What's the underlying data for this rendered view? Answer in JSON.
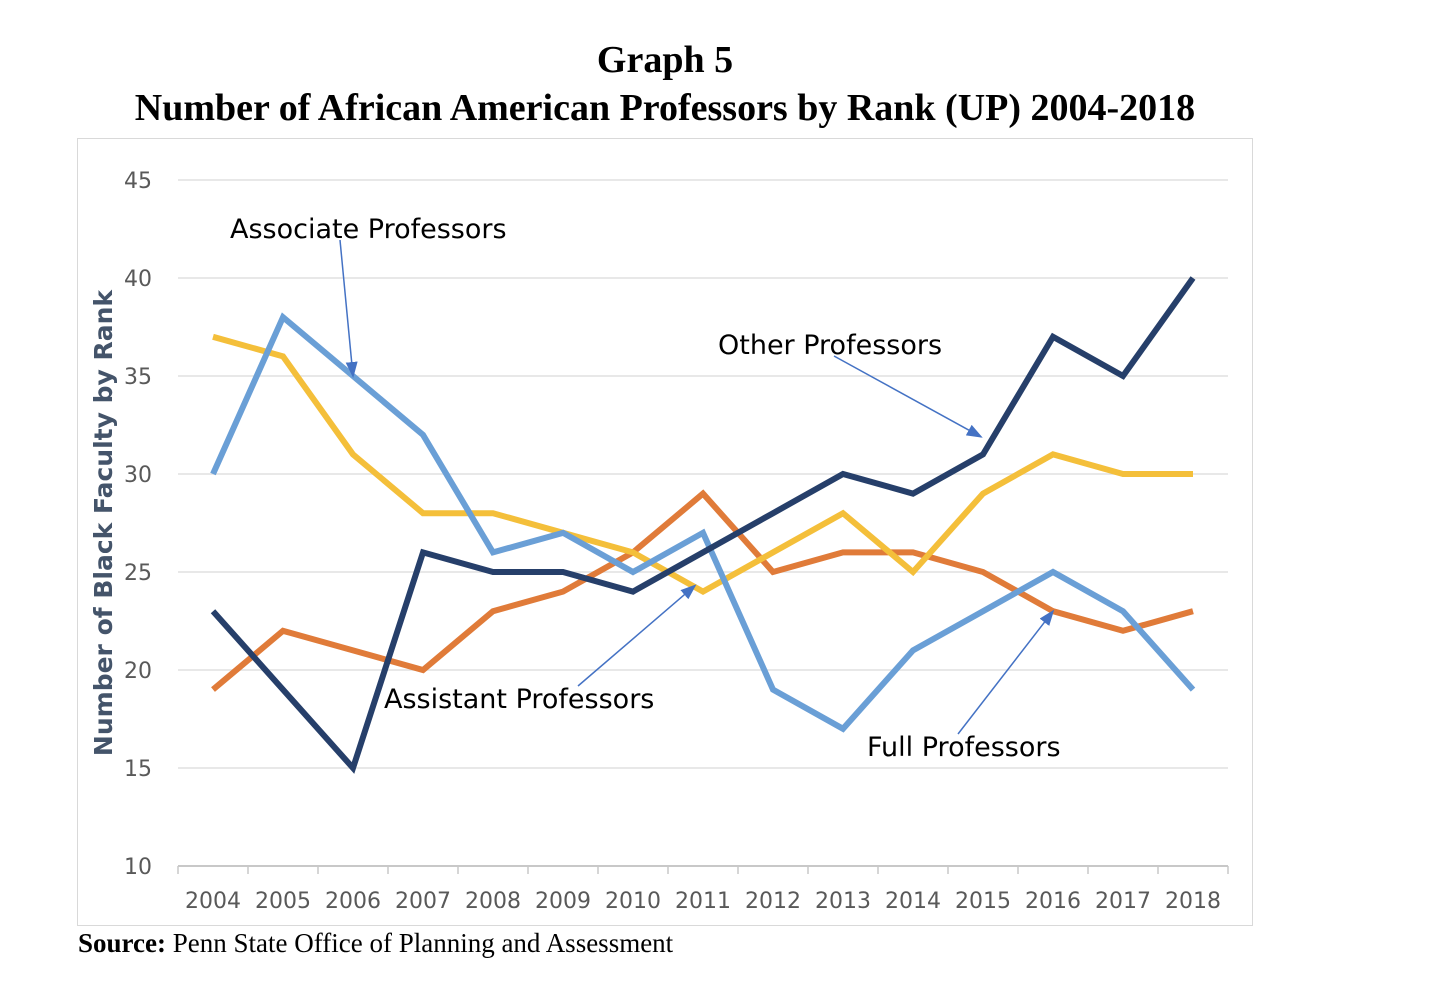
{
  "title_line1": "Graph 5",
  "title_line2": "Number  of African American Professors by Rank (UP) 2004-2018",
  "source_label": "Source:",
  "source_text": "Penn State Office of Planning and Assessment",
  "chart_data": {
    "type": "line",
    "title": "Number  of African American Professors by Rank (UP) 2004-2018",
    "xlabel": "",
    "ylabel": "Number of Black Faculty by Rank",
    "ylim": [
      10,
      45
    ],
    "yticks": [
      10,
      15,
      20,
      25,
      30,
      35,
      40,
      45
    ],
    "grid": true,
    "categories": [
      "2004",
      "2005",
      "2006",
      "2007",
      "2008",
      "2009",
      "2010",
      "2011",
      "2012",
      "2013",
      "2014",
      "2015",
      "2016",
      "2017",
      "2018"
    ],
    "series": [
      {
        "name": "Full Professors",
        "color": "#E07B39",
        "values": [
          19,
          22,
          21,
          20,
          23,
          24,
          26,
          29,
          25,
          26,
          26,
          25,
          23,
          22,
          23
        ]
      },
      {
        "name": "Assistant Professors",
        "color": "#F4BF3A",
        "values": [
          37,
          36,
          31,
          28,
          28,
          27,
          26,
          24,
          26,
          28,
          25,
          29,
          31,
          30,
          30
        ]
      },
      {
        "name": "Associate Professors",
        "color": "#6A9FD6",
        "values": [
          30,
          38,
          35,
          32,
          26,
          27,
          25,
          27,
          19,
          17,
          21,
          23,
          25,
          23,
          19
        ]
      },
      {
        "name": "Other Professors",
        "color": "#263F6A",
        "values": [
          23,
          19,
          15,
          26,
          25,
          25,
          24,
          26,
          28,
          30,
          29,
          31,
          37,
          35,
          40
        ]
      }
    ],
    "annotations": [
      {
        "text": "Associate Professors",
        "target_year": "2006",
        "target_value": 35
      },
      {
        "text": "Other Professors",
        "target_year": "2015",
        "target_value": 32
      },
      {
        "text": "Assistant Professors",
        "target_year": "2011",
        "target_value": 24
      },
      {
        "text": "Full Professors",
        "target_year": "2016",
        "target_value": 23
      }
    ]
  }
}
